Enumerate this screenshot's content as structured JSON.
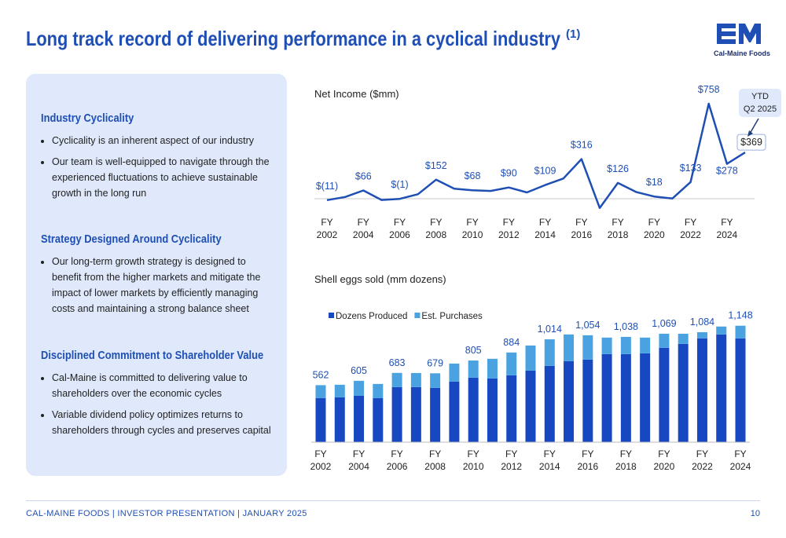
{
  "header": {
    "title": "Long track record of delivering performance in a cyclical industry",
    "footnote_marker": "(1)",
    "logo_name": "Cal-Maine Foods"
  },
  "sidebar": {
    "sections": [
      {
        "heading": "Industry Cyclicality",
        "bullets": [
          "Cyclicality is an inherent aspect of our industry",
          "Our team is well-equipped to navigate through the experienced fluctuations to achieve sustainable growth in the long run"
        ]
      },
      {
        "heading": "Strategy Designed Around Cyclicality",
        "bullets": [
          "Our long-term growth strategy is designed to benefit from the higher markets and mitigate the impact of lower markets by efficiently managing costs and maintaining a strong balance sheet"
        ]
      },
      {
        "heading": "Disciplined Commitment to Shareholder Value",
        "bullets": [
          "Cal-Maine is committed to delivering value to shareholders over the economic cycles",
          "Variable dividend policy optimizes returns to shareholders through cycles and preserves capital"
        ]
      }
    ]
  },
  "chart_data": [
    {
      "type": "line",
      "title": "Net Income ($mm)",
      "color": "#1f4fb4",
      "categories": [
        "FY 2002",
        null,
        "FY 2004",
        null,
        "FY 2006",
        null,
        "FY 2008",
        null,
        "FY 2010",
        null,
        "FY 2012",
        null,
        "FY 2014",
        null,
        "FY 2016",
        null,
        "FY 2018",
        null,
        "FY 2020",
        null,
        "FY 2022",
        null,
        "FY 2024",
        null
      ],
      "values": [
        -11,
        14,
        66,
        -10,
        -1,
        36,
        152,
        80,
        68,
        62,
        90,
        50,
        109,
        161,
        316,
        -74,
        126,
        54,
        18,
        2,
        133,
        758,
        278,
        369
      ],
      "value_labels": [
        "$(11)",
        null,
        "$66",
        null,
        "$(1)",
        null,
        "$152",
        null,
        "$68",
        null,
        "$90",
        null,
        "$109",
        null,
        "$316",
        null,
        "$126",
        null,
        "$18",
        null,
        "$133",
        "$758",
        "$278",
        "$369"
      ],
      "annotation": "YTD Q2 2025",
      "ylim": [
        -90,
        780
      ]
    },
    {
      "type": "bar",
      "title": "Shell eggs sold (mm dozens)",
      "stacked": true,
      "legend": "top-left",
      "categories": [
        "FY 2002",
        null,
        "FY 2004",
        null,
        "FY 2006",
        null,
        "FY 2008",
        null,
        "FY 2010",
        null,
        "FY 2012",
        null,
        "FY 2014",
        null,
        "FY 2016",
        null,
        "FY 2018",
        null,
        "FY 2020",
        null,
        "FY 2022",
        null,
        "FY 2024"
      ],
      "series": [
        {
          "name": "Dozens Produced",
          "color": "#1748c2",
          "values": [
            434,
            442,
            457,
            434,
            543,
            543,
            535,
            597,
            636,
            628,
            659,
            705,
            752,
            798,
            814,
            868,
            868,
            876,
            930,
            969,
            1023,
            1062,
            1023
          ]
        },
        {
          "name": "Est. Purchases",
          "color": "#4aa3e0",
          "values": [
            128,
            124,
            148,
            140,
            140,
            139,
            144,
            178,
            169,
            194,
            225,
            248,
            262,
            264,
            240,
            163,
            170,
            155,
            139,
            100,
            61,
            78,
            125
          ]
        }
      ],
      "totals": [
        562,
        null,
        605,
        null,
        683,
        null,
        679,
        null,
        805,
        null,
        884,
        null,
        1014,
        null,
        1054,
        null,
        1038,
        null,
        1069,
        null,
        1084,
        null,
        1148
      ],
      "total_labels": [
        "562",
        null,
        "605",
        null,
        "683",
        null,
        "679",
        null,
        "805",
        null,
        "884",
        null,
        "1,014",
        null,
        "1,054",
        null,
        "1,038",
        null,
        "1,069",
        null,
        "1,084",
        null,
        "1,148"
      ],
      "ylim": [
        0,
        1200
      ]
    }
  ],
  "footer": {
    "text": "CAL-MAINE FOODS | INVESTOR PRESENTATION | JANUARY 2025",
    "page": "10"
  }
}
